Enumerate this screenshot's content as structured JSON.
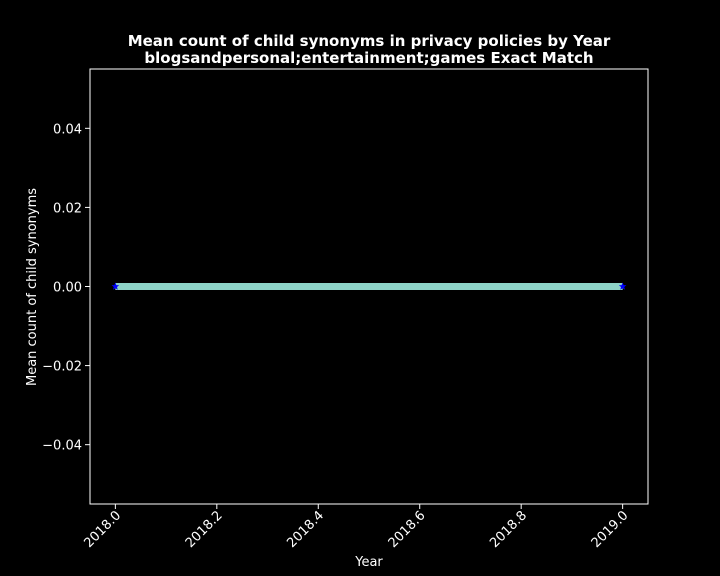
{
  "chart_data": {
    "type": "line",
    "title_line1": "Mean count of child synonyms in privacy policies by Year",
    "title_line2": "blogsandpersonal;entertainment;games Exact Match",
    "xlabel": "Year",
    "ylabel": "Mean count of child synonyms",
    "x": [
      2018.0,
      2019.0
    ],
    "series": [
      {
        "values": [
          0.0,
          0.0
        ]
      }
    ],
    "xlim": [
      2017.95,
      2019.05
    ],
    "ylim": [
      -0.055,
      0.055
    ],
    "xticks": [
      2018.0,
      2018.2,
      2018.4,
      2018.6,
      2018.8,
      2019.0
    ],
    "xtick_labels": [
      "2018.0",
      "2018.2",
      "2018.4",
      "2018.6",
      "2018.8",
      "2019.0"
    ],
    "yticks": [
      -0.04,
      -0.02,
      0.0,
      0.02,
      0.04
    ],
    "ytick_labels": [
      "−0.04",
      "−0.02",
      "0.00",
      "0.02",
      "0.04"
    ],
    "grid": false,
    "colors": {
      "background": "#000000",
      "line": "#8dd3c7",
      "marker": "#0000ff",
      "axes": "#ffffff",
      "text": "#ffffff"
    }
  }
}
